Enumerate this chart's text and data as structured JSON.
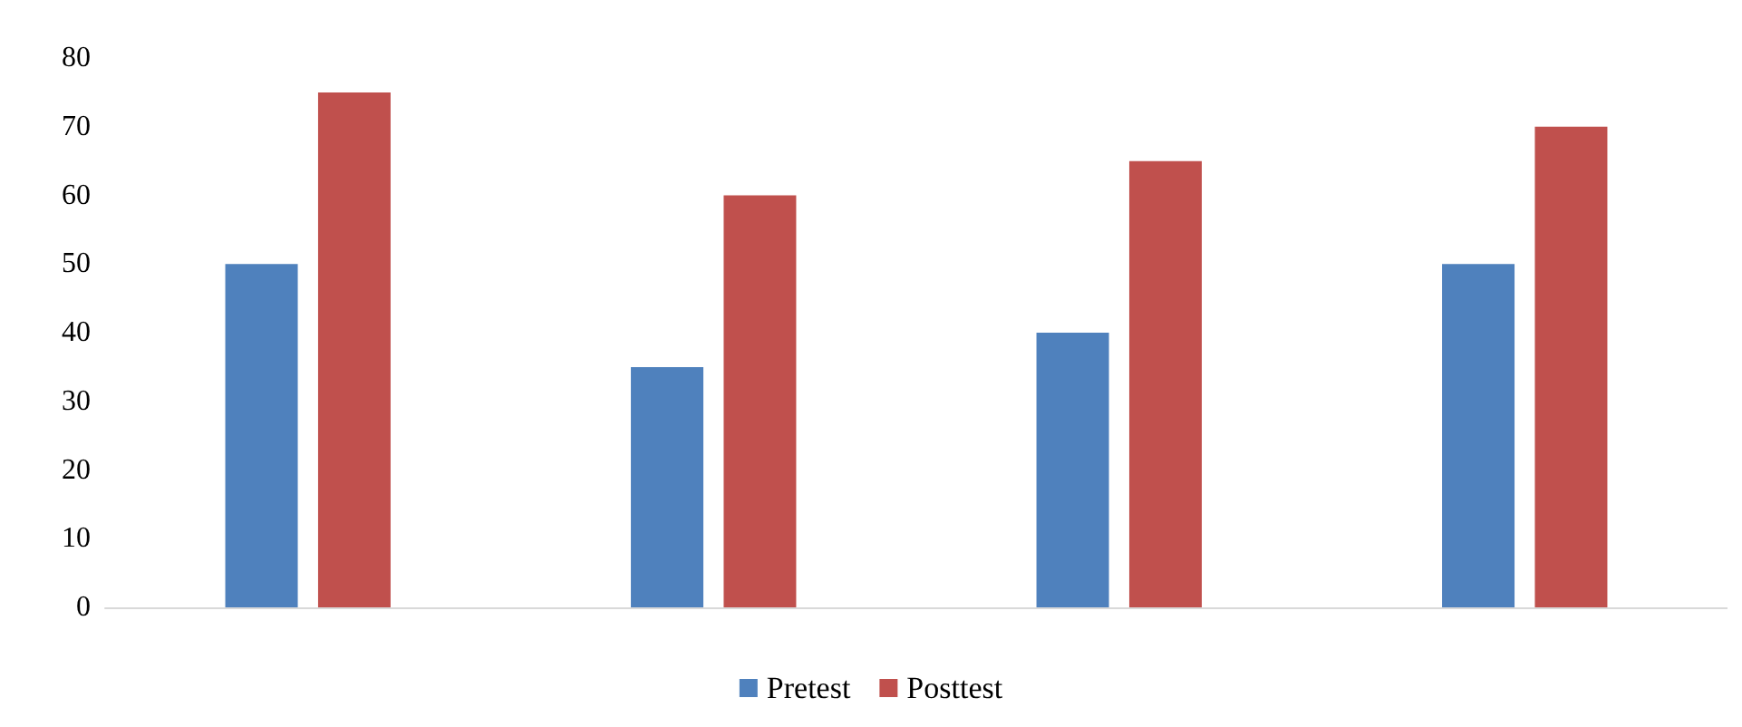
{
  "chart_data": {
    "type": "bar",
    "categories": [
      null,
      null,
      null,
      null
    ],
    "series": [
      {
        "name": "Pretest",
        "color": "#4f81bd",
        "values": [
          50,
          35,
          40,
          50
        ]
      },
      {
        "name": "Posttest",
        "color": "#c0504d",
        "values": [
          75,
          60,
          65,
          70
        ]
      }
    ],
    "ylim": [
      0,
      80
    ],
    "yticks": [
      0,
      10,
      20,
      30,
      40,
      50,
      60,
      70,
      80
    ],
    "grid": false,
    "legend": "bottom"
  }
}
